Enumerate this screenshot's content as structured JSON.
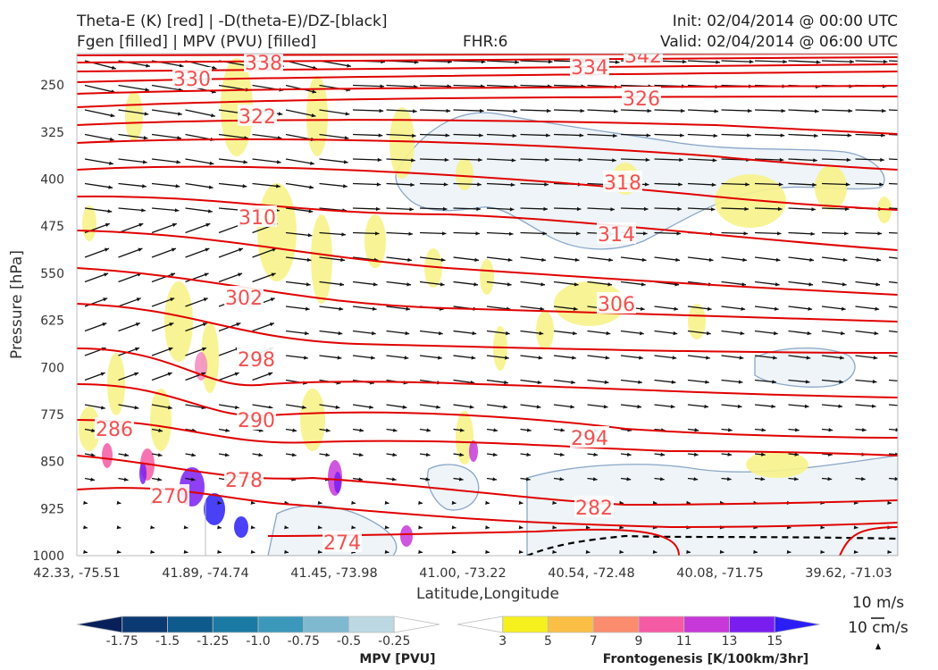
{
  "header": {
    "line1_left": "Theta-E (K) [red] | -D(theta-E)/DZ-[black]",
    "line2_left": "Fgen [filled] | MPV (PVU) [filled]",
    "fhr": "FHR:6",
    "init": "Init: 02/04/2014 @ 00:00 UTC",
    "valid": "Valid: 02/04/2014 @ 06:00 UTC"
  },
  "chart_data": {
    "type": "cross-section",
    "ylabel": "Pressure [hPa]",
    "xlabel": "Latitude,Longitude",
    "yaxis_inverted": true,
    "ylim": [
      1000,
      200
    ],
    "yticks": [
      "250",
      "325",
      "400",
      "475",
      "550",
      "625",
      "700",
      "775",
      "850",
      "925",
      "1000"
    ],
    "xticks": [
      "42.33, -75.51",
      "41.89, -74.74",
      "41.45, -73.98",
      "41.00, -73.22",
      "40.54, -72.48",
      "40.08, -71.75",
      "39.62, -71.03"
    ],
    "theta_e_contours": [
      {
        "label": "342",
        "pressure": 210
      },
      {
        "label": "338",
        "pressure": 212
      },
      {
        "label": "334",
        "pressure": 225
      },
      {
        "label": "330",
        "pressure": 240
      },
      {
        "label": "326",
        "pressure": 262
      },
      {
        "label": "322",
        "pressure": 300
      },
      {
        "label": "318",
        "pressure": 375
      },
      {
        "label": "314",
        "pressure": 420
      },
      {
        "label": "310",
        "pressure": 460
      },
      {
        "label": "306",
        "pressure": 545
      },
      {
        "label": "302",
        "pressure": 570
      },
      {
        "label": "298",
        "pressure": 640
      },
      {
        "label": "294",
        "pressure": 725
      },
      {
        "label": "290",
        "pressure": 730
      },
      {
        "label": "286",
        "pressure": 800
      },
      {
        "label": "282",
        "pressure": 860
      },
      {
        "label": "278",
        "pressure": 860
      },
      {
        "label": "274",
        "pressure": 920
      },
      {
        "label": "270",
        "pressure": 925
      }
    ],
    "mpv_colorbar": {
      "title": "MPV [PVU]",
      "ticks": [
        "-1.75",
        "-1.5",
        "-1.25",
        "-1.0",
        "-0.75",
        "-0.5",
        "-0.25"
      ],
      "colors": [
        "#08205a",
        "#0b3a73",
        "#0e5a8c",
        "#1a7aa3",
        "#3b98bb",
        "#7fb9d0",
        "#bcd9e3",
        "#ffffff"
      ]
    },
    "fgen_colorbar": {
      "title": "Frontogenesis [K/100km/3hr]",
      "ticks": [
        "3",
        "5",
        "7",
        "9",
        "11",
        "13",
        "15"
      ],
      "colors": [
        "#ffffff",
        "#f5f01e",
        "#fbbf45",
        "#fb8c6e",
        "#f55aa5",
        "#c738d8",
        "#7a1ef0",
        "#2a1ef5"
      ]
    },
    "wind_key": {
      "horizontal": "10 m/s",
      "vertical": "10 cm/s"
    },
    "colors": {
      "theta_e": "#e00000",
      "fgen_light": "#f7f38a",
      "mpv_light": "#c9d6e8",
      "arrow": "#111111"
    }
  }
}
